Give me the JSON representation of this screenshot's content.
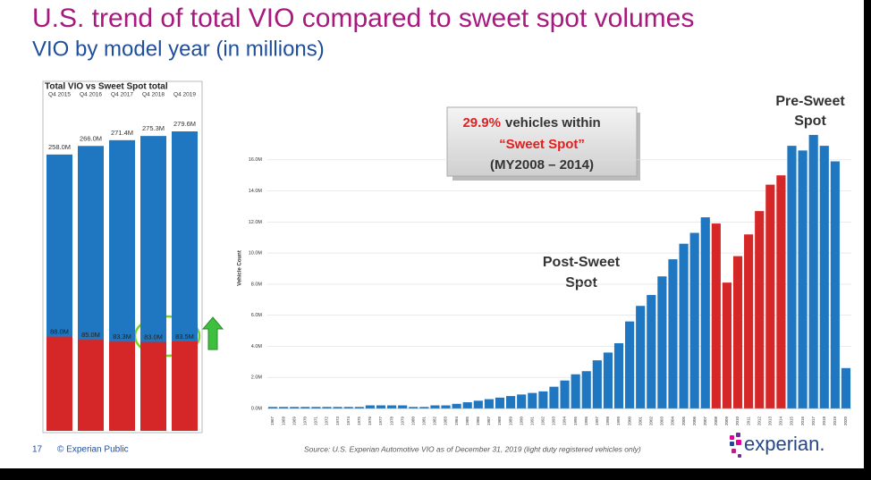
{
  "title": "U.S. trend of total VIO compared to sweet spot volumes",
  "subtitle": "VIO by model year (in millions)",
  "chart_data": [
    {
      "type": "bar",
      "title": "Total VIO vs Sweet Spot total",
      "categories": [
        "Q4 2015",
        "Q4 2016",
        "Q4 2017",
        "Q4 2018",
        "Q4 2019"
      ],
      "series": [
        {
          "color": "#1f77c1",
          "values": [
            258.0,
            266.0,
            271.4,
            275.3,
            279.6
          ],
          "value_labels": [
            "258.0M",
            "266.0M",
            "271.4M",
            "275.3M",
            "279.6M"
          ]
        },
        {
          "color": "#d62728",
          "values": [
            88.0,
            85.0,
            83.3,
            83.0,
            83.5
          ],
          "value_labels": [
            "88.0M",
            "85.0M",
            "83.3M",
            "83.0M",
            "83.5M"
          ]
        }
      ]
    },
    {
      "type": "bar",
      "ylabel": "Vehicle Count",
      "categories": [
        "1967",
        "1968",
        "1969",
        "1970",
        "1971",
        "1972",
        "1973",
        "1974",
        "1975",
        "1976",
        "1977",
        "1978",
        "1979",
        "1980",
        "1981",
        "1982",
        "1983",
        "1984",
        "1985",
        "1986",
        "1987",
        "1988",
        "1989",
        "1990",
        "1991",
        "1992",
        "1993",
        "1994",
        "1995",
        "1996",
        "1997",
        "1998",
        "1999",
        "2000",
        "2001",
        "2002",
        "2003",
        "2004",
        "2005",
        "2006",
        "2007",
        "2008",
        "2009",
        "2010",
        "2011",
        "2012",
        "2013",
        "2014",
        "2015",
        "2016",
        "2017",
        "2018",
        "2019",
        "2020"
      ],
      "values": [
        0.1,
        0.1,
        0.1,
        0.1,
        0.1,
        0.1,
        0.1,
        0.1,
        0.1,
        0.2,
        0.2,
        0.2,
        0.2,
        0.1,
        0.1,
        0.2,
        0.2,
        0.3,
        0.4,
        0.5,
        0.6,
        0.7,
        0.8,
        0.9,
        1.0,
        1.1,
        1.4,
        1.8,
        2.2,
        2.4,
        3.1,
        3.6,
        4.2,
        5.6,
        6.6,
        7.3,
        8.5,
        9.6,
        10.6,
        11.3,
        12.3,
        11.9,
        8.1,
        9.8,
        11.2,
        12.7,
        14.4,
        15.0,
        16.9,
        16.6,
        17.6,
        16.9,
        15.9,
        2.6
      ],
      "colors": [
        "#1f77c1",
        "#1f77c1",
        "#1f77c1",
        "#1f77c1",
        "#1f77c1",
        "#1f77c1",
        "#1f77c1",
        "#1f77c1",
        "#1f77c1",
        "#1f77c1",
        "#1f77c1",
        "#1f77c1",
        "#1f77c1",
        "#1f77c1",
        "#1f77c1",
        "#1f77c1",
        "#1f77c1",
        "#1f77c1",
        "#1f77c1",
        "#1f77c1",
        "#1f77c1",
        "#1f77c1",
        "#1f77c1",
        "#1f77c1",
        "#1f77c1",
        "#1f77c1",
        "#1f77c1",
        "#1f77c1",
        "#1f77c1",
        "#1f77c1",
        "#1f77c1",
        "#1f77c1",
        "#1f77c1",
        "#1f77c1",
        "#1f77c1",
        "#1f77c1",
        "#1f77c1",
        "#1f77c1",
        "#1f77c1",
        "#1f77c1",
        "#1f77c1",
        "#d62728",
        "#d62728",
        "#d62728",
        "#d62728",
        "#d62728",
        "#d62728",
        "#d62728",
        "#1f77c1",
        "#1f77c1",
        "#1f77c1",
        "#1f77c1",
        "#1f77c1",
        "#1f77c1"
      ],
      "ylim": [
        0,
        18
      ],
      "yticks": [
        {
          "value": 0,
          "label": "0.0M"
        },
        {
          "value": 2,
          "label": "2.0M"
        },
        {
          "value": 4,
          "label": "4.0M"
        },
        {
          "value": 6,
          "label": "6.0M"
        },
        {
          "value": 8,
          "label": "8.0M"
        },
        {
          "value": 10,
          "label": "10.0M"
        },
        {
          "value": 12,
          "label": "12.0M"
        },
        {
          "value": 14,
          "label": "14.0M"
        },
        {
          "value": 16,
          "label": "16.0M"
        }
      ],
      "grid": true,
      "annotations": {
        "highlight": "29.9%",
        "text": "vehicles within",
        "sweet_spot": "“Sweet Spot”",
        "range": "(MY2008 – 2014)",
        "post_1": "Post-Sweet",
        "post_2": "Spot",
        "pre_1": "Pre-Sweet",
        "pre_2": "Spot"
      }
    }
  ],
  "footer": {
    "page": "17",
    "classification": "© Experian Public",
    "source": "Source: U.S. Experian Automotive VIO as of December 31, 2019  (light duty registered vehicles only)",
    "logo": "experian."
  }
}
